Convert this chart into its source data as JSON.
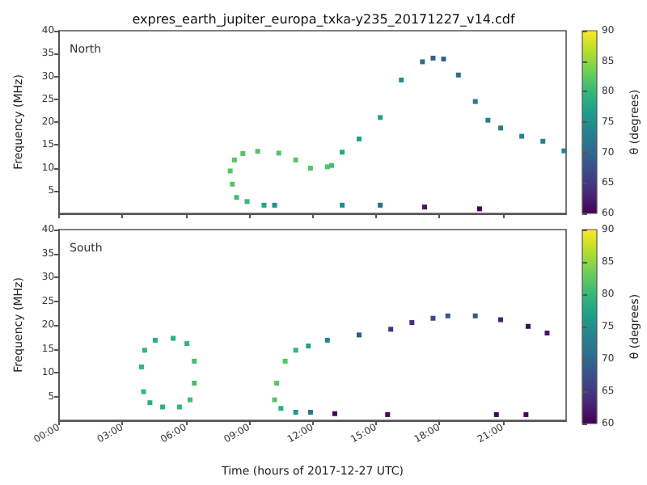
{
  "chart_data": [
    {
      "type": "scatter",
      "title": "expres_earth_jupiter_europa_txka-y235_20171227_v14.cdf",
      "ylabel": "Frequency (MHz)",
      "clabel": "θ (degrees)",
      "annotations": [
        "North"
      ],
      "marker": "square",
      "grid": false,
      "tick_labels": "y",
      "xlim": [
        0,
        24
      ],
      "xticks": [
        {
          "value": 0,
          "label": null
        },
        {
          "value": 3,
          "label": null
        },
        {
          "value": 6,
          "label": null
        },
        {
          "value": 9,
          "label": null
        },
        {
          "value": 12,
          "label": null
        },
        {
          "value": 15,
          "label": null
        },
        {
          "value": 18,
          "label": null
        },
        {
          "value": 21,
          "label": null
        }
      ],
      "ylim": [
        0,
        40
      ],
      "yticks": [
        5,
        10,
        15,
        20,
        25,
        30,
        35,
        40
      ],
      "clim": [
        60,
        90
      ],
      "cticks": [
        60,
        65,
        70,
        75,
        80,
        85,
        90
      ],
      "series": [
        {
          "x": [
            9.7,
            8.9,
            8.4,
            8.2,
            8.1,
            8.3,
            8.7,
            9.4,
            10.4,
            11.2,
            11.9,
            12.7,
            12.9,
            13.4,
            14.2,
            15.2,
            16.2,
            17.2,
            17.7,
            18.2,
            18.9,
            19.7,
            20.3,
            20.9,
            21.9,
            22.9,
            23.9
          ],
          "values": [
            1.8,
            2.6,
            3.5,
            6.4,
            9.3,
            11.7,
            13.1,
            13.6,
            13.2,
            11.7,
            9.9,
            10.2,
            10.5,
            13.4,
            16.3,
            21,
            29.2,
            33.2,
            34,
            33.8,
            30.3,
            24.5,
            20.4,
            18.7,
            16.9,
            15.8,
            13.7
          ],
          "colors": [
            "#22a884",
            "#35b779",
            "#44bf70",
            "#54c568",
            "#54c568",
            "#54c568",
            "#54c568",
            "#54c568",
            "#54c568",
            "#54c568",
            "#54c568",
            "#54c568",
            "#44bf70",
            "#22a884",
            "#20a386",
            "#20a386",
            "#21918c",
            "#31688e",
            "#355f8d",
            "#355f8d",
            "#2e6f8e",
            "#2a788e",
            "#26818e",
            "#26818e",
            "#26818e",
            "#26818e",
            "#26818e"
          ]
        },
        {
          "x": [
            10.2,
            13.4,
            15.2,
            17.3,
            19.9
          ],
          "values": [
            1.8,
            1.8,
            1.8,
            1.4,
            1.0
          ],
          "colors": [
            "#21918c",
            "#21918c",
            "#31688e",
            "#471365",
            "#440154"
          ]
        }
      ]
    },
    {
      "type": "scatter",
      "xlabel": "Time (hours of 2017-12-27 UTC)",
      "ylabel": "Frequency (MHz)",
      "clabel": "θ (degrees)",
      "annotations": [
        "South"
      ],
      "marker": "square",
      "grid": false,
      "xlim": [
        0,
        24
      ],
      "xticks": [
        {
          "value": 0,
          "label": "00:00"
        },
        {
          "value": 3,
          "label": "03:00"
        },
        {
          "value": 6,
          "label": "06:00"
        },
        {
          "value": 9,
          "label": "09:00"
        },
        {
          "value": 12,
          "label": "12:00"
        },
        {
          "value": 15,
          "label": "15:00"
        },
        {
          "value": 18,
          "label": "18:00"
        },
        {
          "value": 21,
          "label": "21:00"
        }
      ],
      "ylim": [
        0,
        40
      ],
      "yticks": [
        5,
        10,
        15,
        20,
        25,
        30,
        35,
        40
      ],
      "clim": [
        60,
        90
      ],
      "cticks": [
        60,
        65,
        70,
        75,
        80,
        85,
        90
      ],
      "series": [
        {
          "x": [
            4.9,
            4.3,
            4.0,
            3.9,
            4.05,
            4.55,
            5.4,
            6.05,
            6.4,
            6.4,
            6.2,
            5.7
          ],
          "values": [
            2.8,
            3.7,
            6,
            11.2,
            14.7,
            16.8,
            17.2,
            16.1,
            12.4,
            7.8,
            4.3,
            2.8
          ],
          "colors": [
            "#2ab07f",
            "#2ab07f",
            "#35b779",
            "#35b779",
            "#35b779",
            "#2ab07f",
            "#2ab07f",
            "#35b779",
            "#44bf70",
            "#44bf70",
            "#44bf70",
            "#35b779"
          ]
        },
        {
          "x": [
            11.2,
            10.5,
            10.2,
            10.3,
            10.7,
            11.2,
            11.8,
            12.7,
            14.2,
            15.7,
            16.7,
            17.7,
            18.4,
            19.7,
            20.9,
            22.2,
            23.1
          ],
          "values": [
            1.7,
            2.5,
            4.3,
            7.8,
            12.4,
            14.7,
            15.6,
            16.8,
            17.9,
            19.1,
            20.5,
            21.4,
            21.9,
            21.9,
            21.1,
            19.7,
            18.3
          ],
          "colors": [
            "#1f998a",
            "#2ab07f",
            "#54c568",
            "#54c568",
            "#54c568",
            "#35b779",
            "#20a386",
            "#23898e",
            "#39568c",
            "#46307e",
            "#46307e",
            "#414487",
            "#39568c",
            "#39568c",
            "#482475",
            "#46085c",
            "#471365"
          ]
        },
        {
          "x": [
            11.9,
            13.05,
            15.55,
            20.7,
            22.1
          ],
          "values": [
            1.7,
            1.4,
            1.2,
            1.2,
            1.2
          ],
          "colors": [
            "#2a788e",
            "#46085c",
            "#46085c",
            "#46085c",
            "#46085c"
          ]
        }
      ]
    }
  ]
}
